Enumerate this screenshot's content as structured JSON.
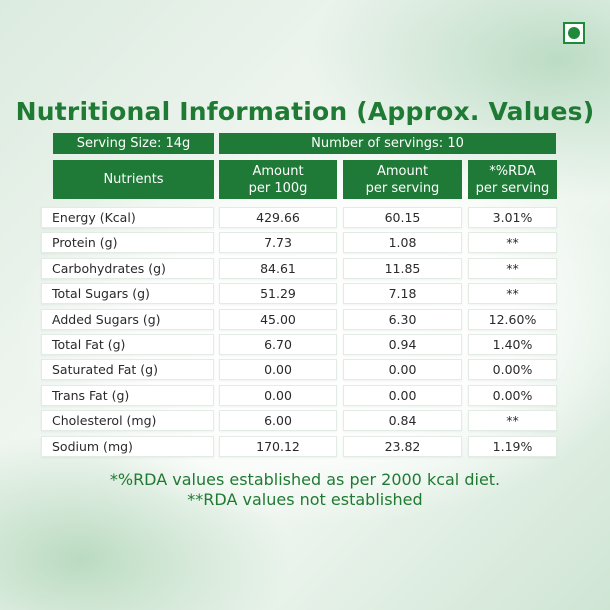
{
  "title": "Nutritional Information (Approx. Values)",
  "serving_size": "Serving Size: 14g",
  "servings": "Number of servings: 10",
  "columns": {
    "nutrients": "Nutrients",
    "per100_l1": "Amount",
    "per100_l2": "per 100g",
    "perserv_l1": "Amount",
    "perserv_l2": "per serving",
    "rda_l1": "*%RDA",
    "rda_l2": "per serving"
  },
  "rows": [
    {
      "name": "Energy (Kcal)",
      "per100": "429.66",
      "perserv": "60.15",
      "rda": "3.01%"
    },
    {
      "name": "Protein (g)",
      "per100": "7.73",
      "perserv": "1.08",
      "rda": "**"
    },
    {
      "name": "Carbohydrates (g)",
      "per100": "84.61",
      "perserv": "11.85",
      "rda": "**"
    },
    {
      "name": "Total Sugars (g)",
      "per100": "51.29",
      "perserv": "7.18",
      "rda": "**"
    },
    {
      "name": "Added Sugars (g)",
      "per100": "45.00",
      "perserv": "6.30",
      "rda": "12.60%"
    },
    {
      "name": "Total Fat (g)",
      "per100": "6.70",
      "perserv": "0.94",
      "rda": "1.40%"
    },
    {
      "name": "Saturated Fat (g)",
      "per100": "0.00",
      "perserv": "0.00",
      "rda": "0.00%"
    },
    {
      "name": "Trans Fat (g)",
      "per100": "0.00",
      "perserv": "0.00",
      "rda": "0.00%"
    },
    {
      "name": "Cholesterol (mg)",
      "per100": "6.00",
      "perserv": "0.84",
      "rda": "**"
    },
    {
      "name": "Sodium (mg)",
      "per100": "170.12",
      "perserv": "23.82",
      "rda": "1.19%"
    }
  ],
  "footnotes": {
    "rda": "*%RDA values established as per 2000 kcal diet.",
    "not_established": "**RDA values not established"
  },
  "colors": {
    "header_green": "#1e7a36",
    "title_green": "#1f7a33",
    "veg_mark": "#1f8a3a"
  },
  "icons": {
    "veg_mark": "vegetarian-mark-icon"
  }
}
